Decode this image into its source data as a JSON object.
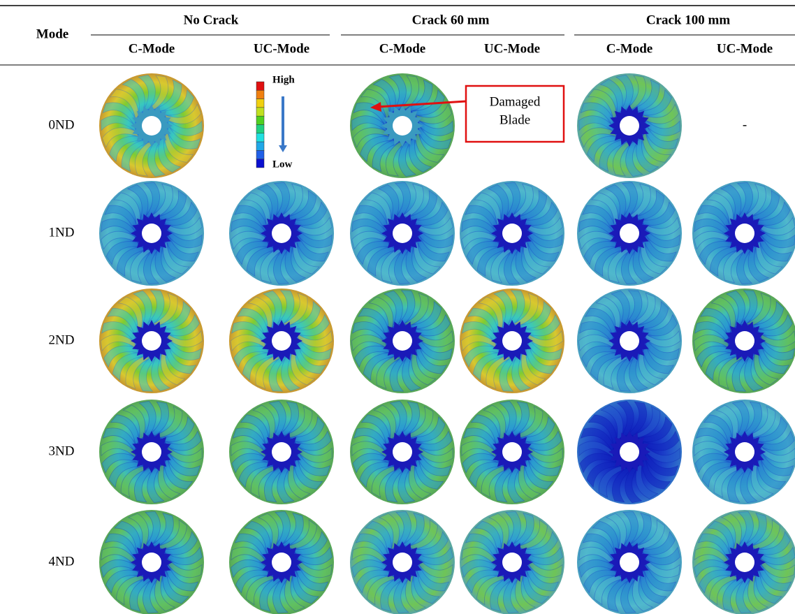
{
  "table": {
    "header": {
      "mode": "Mode",
      "groups": [
        "No Crack",
        "Crack 60 mm",
        "Crack 100 mm"
      ],
      "subheaders": [
        "C-Mode",
        "UC-Mode",
        "C-Mode",
        "UC-Mode",
        "C-Mode",
        "UC-Mode"
      ]
    },
    "rows": [
      "0ND",
      "1ND",
      "2ND",
      "3ND",
      "4ND"
    ],
    "missing_cell": "-",
    "legend": {
      "high": "High",
      "low": "Low"
    },
    "annotation": [
      "Damaged",
      "Blade"
    ]
  }
}
